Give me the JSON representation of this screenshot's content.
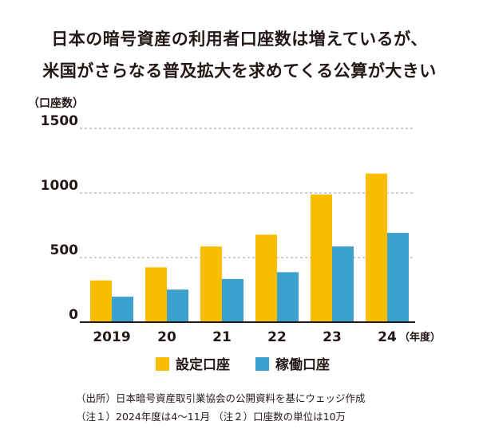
{
  "title_lines": [
    "日本の暗号資産の利用者口座数は増えているが、",
    "米国がさらなる普及拡大を求めてくる公算が大きい"
  ],
  "colors": {
    "set": "#f9be00",
    "active": "#3ca1cf",
    "grid": "#999999",
    "axis": "#231815"
  },
  "chart_data": {
    "type": "bar",
    "unit_label": "（口座数）",
    "categories": [
      "2019",
      "20",
      "21",
      "22",
      "23",
      "24"
    ],
    "x_suffix": "（年度）",
    "series": [
      {
        "name": "設定口座",
        "values": [
          323,
          424,
          586,
          677,
          988,
          1150
        ]
      },
      {
        "name": "稼働口座",
        "values": [
          197,
          252,
          334,
          387,
          586,
          691
        ]
      }
    ],
    "yticks": [
      0,
      500,
      1000,
      1500
    ],
    "ylim": [
      0,
      1500
    ],
    "grid": true,
    "legend": "bottom"
  },
  "notes": [
    "（出所）日本暗号資産取引業協会の公開資料を基にウェッジ作成",
    "（注１）2024年度は4～11月 （注２）口座数の単位は10万"
  ]
}
